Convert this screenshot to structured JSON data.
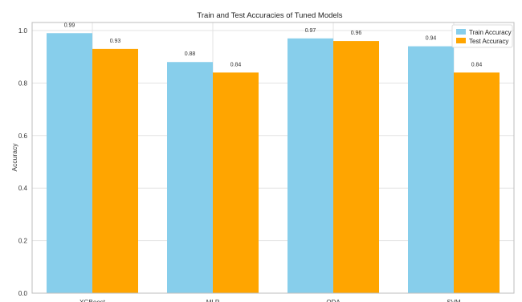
{
  "chart_data": {
    "type": "bar",
    "title": "Train and Test Accuracies of Tuned Models",
    "xlabel": "",
    "ylabel": "Accuracy",
    "categories": [
      "XGBoost",
      "MLP",
      "QDA",
      "SVM"
    ],
    "series": [
      {
        "name": "Train Accuracy",
        "values": [
          0.99,
          0.88,
          0.97,
          0.94
        ],
        "labels": [
          "0.99",
          "0.88",
          "0.97",
          "0.94"
        ],
        "color": "#87CEEB"
      },
      {
        "name": "Test Accuracy",
        "values": [
          0.93,
          0.84,
          0.96,
          0.84
        ],
        "labels": [
          "0.93",
          "0.84",
          "0.96",
          "0.84"
        ],
        "color": "#FFA500"
      }
    ],
    "ylim": [
      0,
      1.0
    ],
    "yticks": [
      "0.0",
      "0.2",
      "0.4",
      "0.6",
      "0.8",
      "1.0"
    ],
    "grid": true,
    "legend_position": "top-right"
  }
}
